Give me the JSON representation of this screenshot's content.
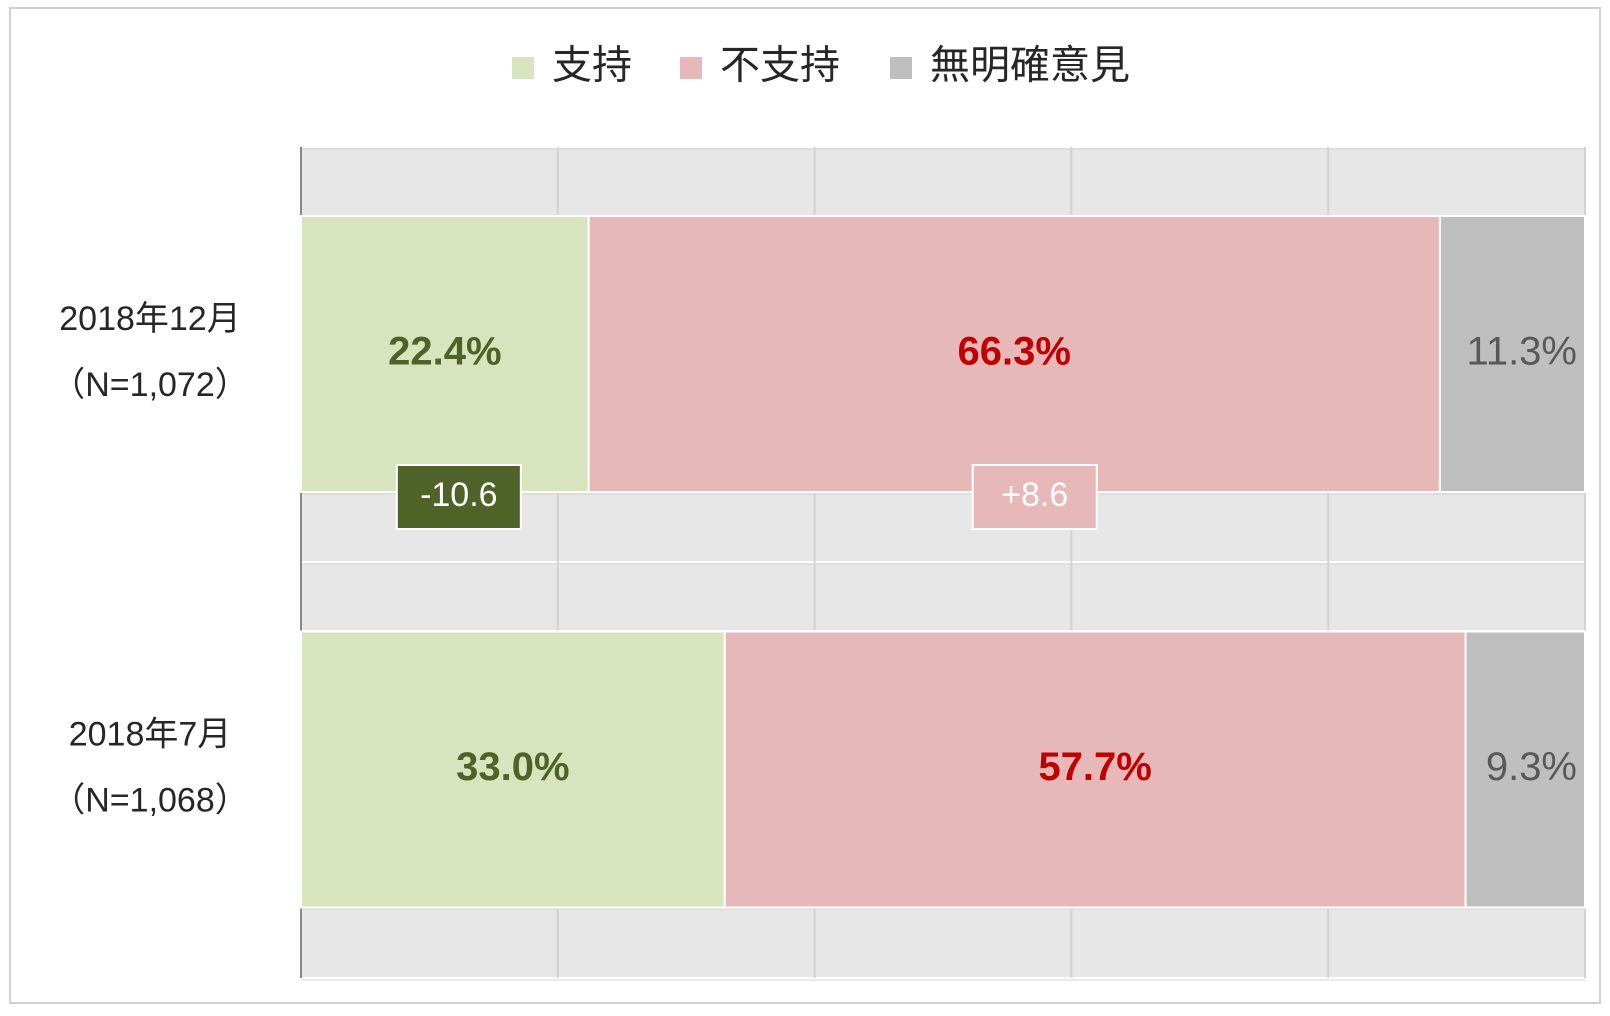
{
  "chart_data": {
    "type": "stacked_bar_horizontal",
    "categories": [
      [
        "2018年12月",
        "（N=1,072）"
      ],
      [
        "2018年7月",
        "（N=1,068）"
      ]
    ],
    "series": [
      {
        "name": "支持",
        "color": "#d7e4bd",
        "label_color": "#4f6228",
        "values": [
          22.4,
          33.0
        ],
        "value_labels": [
          "22.4%",
          "33.0%"
        ]
      },
      {
        "name": "不支持",
        "color": "#e6b8b7",
        "label_color": "#c00000",
        "values": [
          66.3,
          57.7
        ],
        "value_labels": [
          "66.3%",
          "57.7%"
        ]
      },
      {
        "name": "無明確意見",
        "color": "#bfbfbf",
        "label_color": "#595959",
        "values": [
          11.3,
          9.3
        ],
        "value_labels": [
          "11.3%",
          "9.3%"
        ]
      }
    ],
    "annotations": [
      {
        "label": "-10.6",
        "color": "#4f6228"
      },
      {
        "label": "+8.6",
        "color": "#e6b8b7"
      }
    ],
    "xlim": [
      0,
      100
    ],
    "xticks": [
      0,
      20,
      40,
      60,
      80,
      100
    ],
    "grid": true,
    "legend": "top"
  }
}
